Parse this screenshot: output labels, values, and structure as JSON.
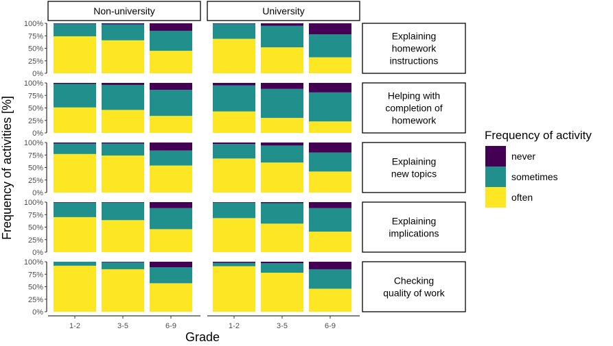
{
  "chart_data": {
    "type": "bar",
    "subtype": "stacked-100-percent-faceted",
    "xlabel": "Grade",
    "ylabel": "Frequency of activities [%]",
    "ylim": [
      0,
      100
    ],
    "y_ticks": [
      "0%",
      "25%",
      "50%",
      "75%",
      "100%"
    ],
    "y_tick_values": [
      0,
      25,
      50,
      75,
      100
    ],
    "categories": [
      "1-2",
      "3-5",
      "6-9"
    ],
    "columns": [
      "Non-university",
      "University"
    ],
    "rows": [
      {
        "label_lines": [
          "Explaining",
          "homework",
          "instructions"
        ]
      },
      {
        "label_lines": [
          "Helping with",
          "completion of",
          "homework"
        ]
      },
      {
        "label_lines": [
          "Explaining",
          "new topics"
        ]
      },
      {
        "label_lines": [
          "Explaining",
          "implications"
        ]
      },
      {
        "label_lines": [
          "Checking",
          "quality of work"
        ]
      }
    ],
    "legend": {
      "title": "Frequency of activity",
      "position": "right",
      "entries": [
        {
          "key": "never",
          "label": "never",
          "color": "#440154"
        },
        {
          "key": "sometimes",
          "label": "sometimes",
          "color": "#21908C"
        },
        {
          "key": "often",
          "label": "often",
          "color": "#FDE725"
        }
      ]
    },
    "series_order": [
      "often",
      "sometimes",
      "never"
    ],
    "panels": [
      [
        [
          {
            "often": 74,
            "sometimes": 25,
            "never": 1
          },
          {
            "often": 66,
            "sometimes": 32,
            "never": 2
          },
          {
            "often": 45,
            "sometimes": 40,
            "never": 15
          }
        ],
        [
          {
            "often": 69,
            "sometimes": 30,
            "never": 1
          },
          {
            "often": 52,
            "sometimes": 43,
            "never": 5
          },
          {
            "often": 32,
            "sometimes": 46,
            "never": 22
          }
        ]
      ],
      [
        [
          {
            "often": 51,
            "sometimes": 47,
            "never": 2
          },
          {
            "often": 46,
            "sometimes": 50,
            "never": 4
          },
          {
            "often": 34,
            "sometimes": 52,
            "never": 14
          }
        ],
        [
          {
            "often": 43,
            "sometimes": 52,
            "never": 5
          },
          {
            "often": 30,
            "sometimes": 58,
            "never": 12
          },
          {
            "often": 23,
            "sometimes": 58,
            "never": 19
          }
        ]
      ],
      [
        [
          {
            "often": 77,
            "sometimes": 21,
            "never": 2
          },
          {
            "often": 74,
            "sometimes": 24,
            "never": 2
          },
          {
            "often": 54,
            "sometimes": 30,
            "never": 16
          }
        ],
        [
          {
            "often": 68,
            "sometimes": 29,
            "never": 3
          },
          {
            "often": 60,
            "sometimes": 34,
            "never": 6
          },
          {
            "often": 42,
            "sometimes": 38,
            "never": 20
          }
        ]
      ],
      [
        [
          {
            "often": 70,
            "sometimes": 29,
            "never": 1
          },
          {
            "often": 64,
            "sometimes": 35,
            "never": 1
          },
          {
            "often": 46,
            "sometimes": 42,
            "never": 12
          }
        ],
        [
          {
            "often": 68,
            "sometimes": 31,
            "never": 1
          },
          {
            "often": 57,
            "sometimes": 41,
            "never": 2
          },
          {
            "often": 41,
            "sometimes": 47,
            "never": 12
          }
        ]
      ],
      [
        [
          {
            "often": 92,
            "sometimes": 8,
            "never": 0
          },
          {
            "often": 85,
            "sometimes": 14,
            "never": 1
          },
          {
            "often": 57,
            "sometimes": 32,
            "never": 11
          }
        ],
        [
          {
            "often": 91,
            "sometimes": 7,
            "never": 2
          },
          {
            "often": 78,
            "sometimes": 19,
            "never": 3
          },
          {
            "often": 46,
            "sometimes": 39,
            "never": 15
          }
        ]
      ]
    ]
  }
}
